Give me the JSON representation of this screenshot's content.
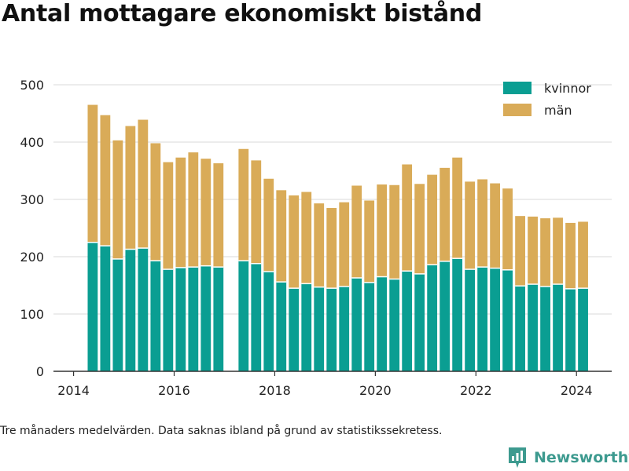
{
  "title": "Antal mottagare ekonomiskt bistånd",
  "footnote": "Tre månaders medelvärden. Data saknas ibland på grund av statistikssekretess.",
  "brand": "Newsworthy",
  "colors": {
    "kvinnor": "#0a9e92",
    "man": "#d9ab58",
    "grid": "#d9d9d9",
    "axis": "#333333"
  },
  "chart_data": {
    "type": "bar",
    "stacked": true,
    "x_unit": "year (quarter midpoints)",
    "xlim": [
      2013.6,
      2024.7
    ],
    "ylim": [
      0,
      500
    ],
    "yticks": [
      0,
      100,
      200,
      300,
      400,
      500
    ],
    "xticks": [
      2014,
      2016,
      2018,
      2020,
      2022,
      2024
    ],
    "legend_position": "top-right",
    "grid": true,
    "x": [
      2014.38,
      2014.63,
      2014.88,
      2015.13,
      2015.38,
      2015.63,
      2015.88,
      2016.13,
      2016.38,
      2016.63,
      2016.88,
      2017.38,
      2017.63,
      2017.88,
      2018.13,
      2018.38,
      2018.63,
      2018.88,
      2019.13,
      2019.38,
      2019.63,
      2019.88,
      2020.13,
      2020.38,
      2020.63,
      2020.88,
      2021.13,
      2021.38,
      2021.63,
      2021.88,
      2022.13,
      2022.38,
      2022.63,
      2022.88,
      2023.13,
      2023.38,
      2023.63,
      2023.88,
      2024.13
    ],
    "series": [
      {
        "name": "kvinnor",
        "values": [
          225,
          219,
          196,
          213,
          215,
          193,
          178,
          181,
          182,
          184,
          182,
          193,
          188,
          174,
          156,
          145,
          153,
          147,
          145,
          148,
          163,
          155,
          165,
          161,
          175,
          170,
          186,
          192,
          197,
          178,
          182,
          180,
          177,
          149,
          152,
          148,
          152,
          144,
          145
        ]
      },
      {
        "name": "män",
        "values": [
          240,
          228,
          207,
          215,
          224,
          205,
          187,
          192,
          200,
          187,
          181,
          195,
          180,
          162,
          160,
          162,
          160,
          146,
          140,
          147,
          161,
          143,
          161,
          164,
          186,
          157,
          157,
          163,
          176,
          153,
          153,
          148,
          142,
          122,
          118,
          119,
          116,
          115,
          116
        ]
      }
    ]
  }
}
